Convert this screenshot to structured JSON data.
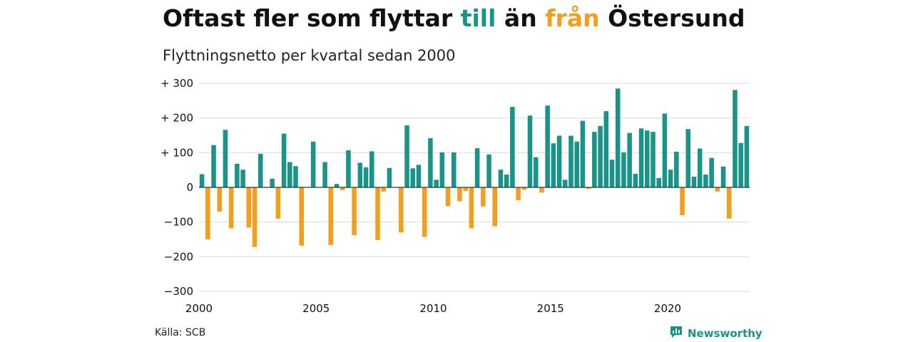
{
  "header": {
    "title_part1": "Oftast fler som flyttar ",
    "title_pos": "till",
    "title_part2": " än ",
    "title_neg": "från",
    "title_part3": " Östersund",
    "subtitle": "Flyttningsnetto per kvartal sedan 2000"
  },
  "footer": {
    "source": "Källa: SCB",
    "brand": "Newsworthy",
    "brand_icon": "newsworthy-logo-icon"
  },
  "colors": {
    "positive": "#1a9488",
    "negative": "#f29e1f",
    "grid": "#d9d9d9",
    "zero_line": "#333333"
  },
  "chart_data": {
    "type": "bar",
    "title": "Oftast fler som flyttar till än från Östersund",
    "subtitle": "Flyttningsnetto per kvartal sedan 2000",
    "xlabel": "",
    "ylabel": "",
    "ylim": [
      -300,
      300
    ],
    "yticks": [
      {
        "value": 300,
        "label": "+ 300"
      },
      {
        "value": 200,
        "label": "+ 200"
      },
      {
        "value": 100,
        "label": "+ 100"
      },
      {
        "value": 0,
        "label": "0"
      },
      {
        "value": -100,
        "label": "−100"
      },
      {
        "value": -200,
        "label": "−200"
      },
      {
        "value": -300,
        "label": "−300"
      }
    ],
    "xticks": [
      "2000",
      "2005",
      "2010",
      "2015",
      "2020"
    ],
    "grid": true,
    "start_year": 2000,
    "periods_per_year": 4,
    "values": [
      38,
      -150,
      122,
      -70,
      166,
      -118,
      68,
      51,
      -116,
      -172,
      97,
      0,
      25,
      -90,
      155,
      73,
      61,
      -168,
      0,
      132,
      0,
      73,
      -166,
      10,
      -8,
      107,
      -138,
      71,
      58,
      104,
      -152,
      -12,
      56,
      0,
      -130,
      179,
      55,
      65,
      -143,
      142,
      22,
      101,
      -54,
      101,
      -40,
      -10,
      -118,
      113,
      -55,
      95,
      -112,
      51,
      37,
      232,
      -37,
      -7,
      207,
      87,
      -15,
      236,
      127,
      149,
      22,
      149,
      132,
      192,
      -4,
      160,
      177,
      220,
      80,
      285,
      101,
      157,
      39,
      170,
      164,
      160,
      27,
      213,
      51,
      103,
      -80,
      168,
      31,
      112,
      37,
      85,
      -12,
      60,
      -90,
      281,
      128,
      177
    ]
  }
}
